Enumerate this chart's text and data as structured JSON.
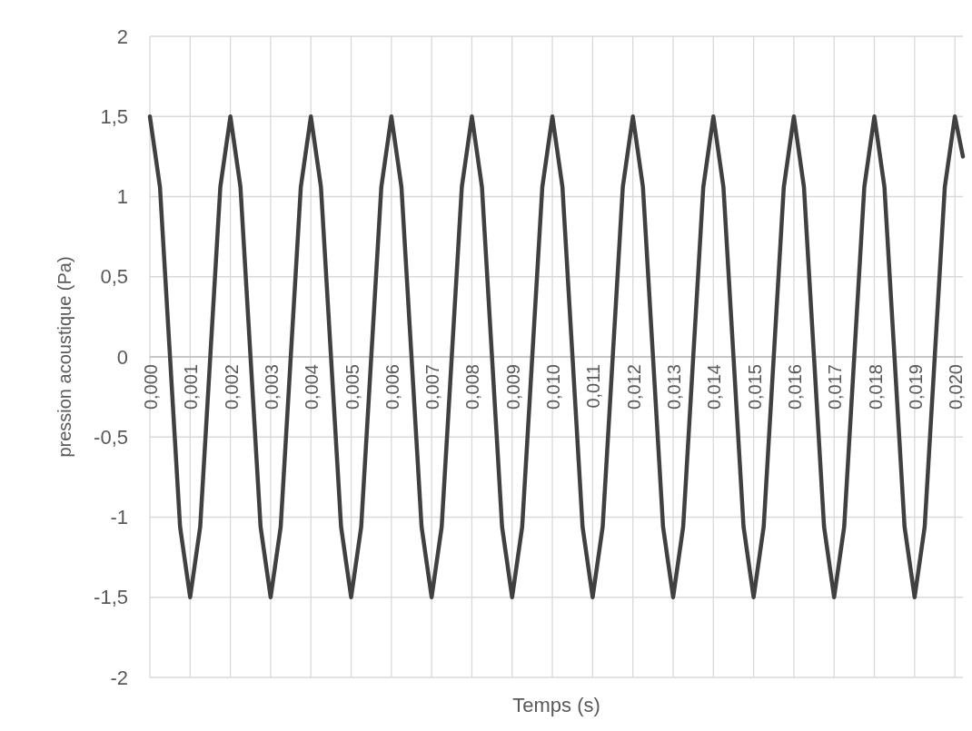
{
  "chart_data": {
    "type": "line",
    "xlabel": "Temps (s)",
    "ylabel": "pression acoustique (Pa)",
    "xlim": [
      0,
      0.0202
    ],
    "ylim": [
      -2,
      2
    ],
    "xticks": [
      {
        "value": 0,
        "label": "0,000"
      },
      {
        "value": 0.001,
        "label": "0,001"
      },
      {
        "value": 0.002,
        "label": "0,002"
      },
      {
        "value": 0.003,
        "label": "0,003"
      },
      {
        "value": 0.004,
        "label": "0,004"
      },
      {
        "value": 0.005,
        "label": "0,005"
      },
      {
        "value": 0.006,
        "label": "0,006"
      },
      {
        "value": 0.007,
        "label": "0,007"
      },
      {
        "value": 0.008,
        "label": "0,008"
      },
      {
        "value": 0.009,
        "label": "0,009"
      },
      {
        "value": 0.01,
        "label": "0,010"
      },
      {
        "value": 0.011,
        "label": "0,011"
      },
      {
        "value": 0.012,
        "label": "0,012"
      },
      {
        "value": 0.013,
        "label": "0,013"
      },
      {
        "value": 0.014,
        "label": "0,014"
      },
      {
        "value": 0.015,
        "label": "0,015"
      },
      {
        "value": 0.016,
        "label": "0,016"
      },
      {
        "value": 0.017,
        "label": "0,017"
      },
      {
        "value": 0.018,
        "label": "0,018"
      },
      {
        "value": 0.019,
        "label": "0,019"
      },
      {
        "value": 0.02,
        "label": "0,020"
      }
    ],
    "yticks": [
      -2,
      {
        "value": -1.5,
        "label": "-1,5"
      },
      -1,
      {
        "value": -0.5,
        "label": "-0,5"
      },
      0,
      {
        "value": 0.5,
        "label": "0,5"
      },
      1,
      {
        "value": 1.5,
        "label": "1,5"
      },
      2
    ],
    "grid": true,
    "marker": "none",
    "line_style": "solid",
    "x": [
      0,
      0.00025,
      0.0005,
      0.00075,
      0.001,
      0.00125,
      0.0015,
      0.00175,
      0.002,
      0.00225,
      0.0025,
      0.00275,
      0.003,
      0.00325,
      0.0035,
      0.00375,
      0.004,
      0.00425,
      0.0045,
      0.00475,
      0.005,
      0.00525,
      0.0055,
      0.00575,
      0.006,
      0.00625,
      0.0065,
      0.00675,
      0.007,
      0.00725,
      0.0075,
      0.00775,
      0.008,
      0.00825,
      0.0085,
      0.00875,
      0.009,
      0.00925,
      0.0095,
      0.00975,
      0.01,
      0.01025,
      0.0105,
      0.01075,
      0.011,
      0.01125,
      0.0115,
      0.01175,
      0.012,
      0.01225,
      0.0125,
      0.01275,
      0.013,
      0.01325,
      0.0135,
      0.01375,
      0.014,
      0.01425,
      0.0145,
      0.01475,
      0.015,
      0.01525,
      0.0155,
      0.01575,
      0.016,
      0.01625,
      0.0165,
      0.01675,
      0.017,
      0.01725,
      0.0175,
      0.01775,
      0.018,
      0.01825,
      0.0185,
      0.01875,
      0.019,
      0.01925,
      0.0195,
      0.01975,
      0.02,
      0.0202
    ],
    "series": [
      {
        "color": "#404040",
        "values": [
          1.5,
          1.06,
          0,
          -1.06,
          -1.5,
          -1.06,
          0,
          1.06,
          1.5,
          1.06,
          0,
          -1.06,
          -1.5,
          -1.06,
          0,
          1.06,
          1.5,
          1.06,
          0,
          -1.06,
          -1.5,
          -1.06,
          0,
          1.06,
          1.5,
          1.06,
          0,
          -1.06,
          -1.5,
          -1.06,
          0,
          1.06,
          1.5,
          1.06,
          0,
          -1.06,
          -1.5,
          -1.06,
          0,
          1.06,
          1.5,
          1.06,
          0,
          -1.06,
          -1.5,
          -1.06,
          0,
          1.06,
          1.5,
          1.06,
          0,
          -1.06,
          -1.5,
          -1.06,
          0,
          1.06,
          1.5,
          1.06,
          0,
          -1.06,
          -1.5,
          -1.06,
          0,
          1.06,
          1.5,
          1.06,
          0,
          -1.06,
          -1.5,
          -1.06,
          0,
          1.06,
          1.5,
          1.06,
          0,
          -1.06,
          -1.5,
          -1.06,
          0,
          1.06,
          1.5,
          1.25
        ]
      }
    ]
  }
}
